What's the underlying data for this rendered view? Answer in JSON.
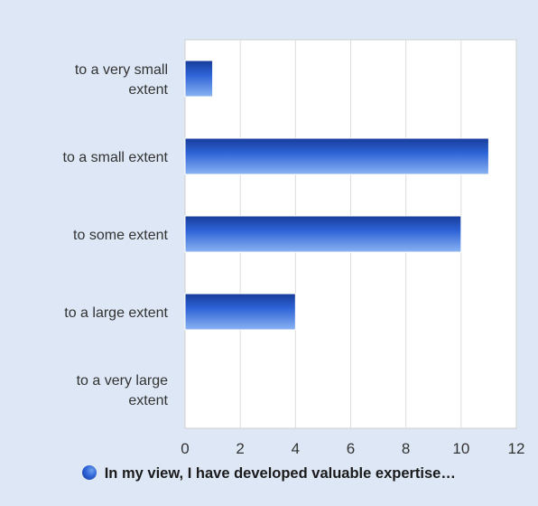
{
  "chart_data": {
    "type": "bar",
    "orientation": "horizontal",
    "categories": [
      [
        "to a very small",
        "extent"
      ],
      [
        "to a small extent"
      ],
      [
        "to some extent"
      ],
      [
        "to a large extent"
      ],
      [
        "to a very large",
        "extent"
      ]
    ],
    "series": [
      {
        "name": "In my view, I have developed valuable expertise…",
        "values": [
          1,
          11,
          10,
          4,
          0
        ]
      }
    ],
    "xlim": [
      0,
      12
    ],
    "xticks": [
      0,
      2,
      4,
      6,
      8,
      10,
      12
    ],
    "grid": true,
    "legend_position": "bottom",
    "colors": {
      "bar_dark": "#173c9a",
      "bar_mid": "#2d63d6",
      "bar_light": "#6fa0ee",
      "background": "#dde7f5",
      "plot_background": "#ffffff",
      "grid": "#dcdcdc"
    }
  },
  "legend": {
    "label": "In my view, I have developed valuable expertise…",
    "icon": "circle-marker-icon"
  }
}
